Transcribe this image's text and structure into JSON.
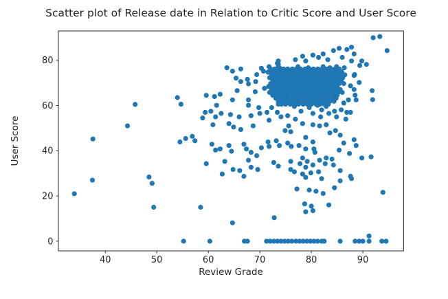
{
  "chart_data": {
    "type": "scatter",
    "title": "Scatter plot of Release date in Relation to Critic Score and User Score",
    "xlabel": "Review Grade",
    "ylabel": "User Score",
    "xlim": [
      30.9,
      97.9
    ],
    "ylim": [
      -4.3,
      93.0
    ],
    "xticks": [
      40,
      50,
      60,
      70,
      80,
      90
    ],
    "yticks": [
      0,
      20,
      40,
      60,
      80
    ],
    "grid": false,
    "legend": null,
    "marker_color": "#1f77b4",
    "axis_color": "#262626",
    "values_estimated": true,
    "points": [
      [
        34,
        21
      ],
      [
        37.5,
        27
      ],
      [
        37.6,
        45.2
      ],
      [
        44.3,
        51
      ],
      [
        45.8,
        60.5
      ],
      [
        48.5,
        28.4
      ],
      [
        49.1,
        25.6
      ],
      [
        49.4,
        15
      ],
      [
        58.5,
        15
      ],
      [
        64.7,
        8.1
      ],
      [
        72.8,
        10.4
      ],
      [
        55.2,
        0
      ],
      [
        60.3,
        0
      ],
      [
        67,
        0
      ],
      [
        67.6,
        0
      ],
      [
        71.3,
        0
      ],
      [
        72,
        0
      ],
      [
        72.7,
        0
      ],
      [
        73.4,
        0
      ],
      [
        74.1,
        0
      ],
      [
        74.8,
        0
      ],
      [
        75.5,
        0
      ],
      [
        76.2,
        0
      ],
      [
        77,
        0
      ],
      [
        77.7,
        0
      ],
      [
        78.4,
        0
      ],
      [
        79.1,
        0
      ],
      [
        79.8,
        0
      ],
      [
        80.5,
        0
      ],
      [
        81.2,
        0
      ],
      [
        82,
        0
      ],
      [
        82.5,
        0
      ],
      [
        85.6,
        0
      ],
      [
        88.5,
        0
      ],
      [
        89.3,
        0
      ],
      [
        90,
        0
      ],
      [
        91.2,
        0
      ],
      [
        91.2,
        2.3
      ],
      [
        93.7,
        0
      ],
      [
        94.5,
        0
      ],
      [
        77.2,
        23.1
      ],
      [
        79.6,
        22.6
      ],
      [
        80.9,
        22.1
      ],
      [
        82.3,
        21.1
      ],
      [
        84.5,
        23.6
      ],
      [
        93.9,
        21.6
      ],
      [
        78.7,
        16.5
      ],
      [
        80,
        15.5
      ],
      [
        83.4,
        16
      ],
      [
        78.9,
        13
      ],
      [
        80.3,
        13.5
      ],
      [
        78.9,
        28.2
      ],
      [
        82,
        27.7
      ],
      [
        85.6,
        26.7
      ],
      [
        87.8,
        27.7
      ],
      [
        54.7,
        60.6
      ],
      [
        59.4,
        57
      ],
      [
        60.5,
        57.5
      ],
      [
        58.9,
        54.5
      ],
      [
        61.6,
        60.1
      ],
      [
        61.4,
        55
      ],
      [
        60.9,
        51.5
      ],
      [
        62.5,
        56.5
      ],
      [
        64.3,
        56
      ],
      [
        64,
        52
      ],
      [
        64.9,
        50.5
      ],
      [
        66,
        55
      ],
      [
        66.3,
        49.4
      ],
      [
        67.8,
        60.1
      ],
      [
        68.3,
        55.5
      ],
      [
        68.7,
        51
      ],
      [
        69.8,
        59.1
      ],
      [
        70,
        56.5
      ],
      [
        71.4,
        57
      ],
      [
        71.8,
        53.5
      ],
      [
        72.3,
        59.1
      ],
      [
        73.6,
        60.6
      ],
      [
        73.4,
        57
      ],
      [
        74.1,
        55
      ],
      [
        75.4,
        55.5
      ],
      [
        75.6,
        51
      ],
      [
        74.9,
        48.9
      ],
      [
        76,
        48.4
      ],
      [
        54.5,
        43.9
      ],
      [
        55.6,
        45.4
      ],
      [
        56.9,
        46.4
      ],
      [
        57.4,
        44.4
      ],
      [
        60.7,
        42.9
      ],
      [
        61.4,
        40.3
      ],
      [
        62.3,
        40.8
      ],
      [
        64,
        42.3
      ],
      [
        64.5,
        39.8
      ],
      [
        66.9,
        42.9
      ],
      [
        67.4,
        40.8
      ],
      [
        68.3,
        39.3
      ],
      [
        69.4,
        37.8
      ],
      [
        70.3,
        41.3
      ],
      [
        71.6,
        43.9
      ],
      [
        71.8,
        41.9
      ],
      [
        73.2,
        44.4
      ],
      [
        73.8,
        42.3
      ],
      [
        75.4,
        43.4
      ],
      [
        76.1,
        41.9
      ],
      [
        59.6,
        34.3
      ],
      [
        63.2,
        35.3
      ],
      [
        64.8,
        31.7
      ],
      [
        66.1,
        31.2
      ],
      [
        67.8,
        35.8
      ],
      [
        68.3,
        32.7
      ],
      [
        69.6,
        31.7
      ],
      [
        62.7,
        29.7
      ],
      [
        66.9,
        28.7
      ],
      [
        72.7,
        34.8
      ],
      [
        73.6,
        33.2
      ],
      [
        76,
        35.3
      ],
      [
        76,
        31.7
      ],
      [
        54,
        63.5
      ],
      [
        59.6,
        64.5
      ],
      [
        61.2,
        64
      ],
      [
        62.3,
        65
      ],
      [
        64.7,
        62.5
      ],
      [
        65.6,
        66.6
      ],
      [
        67.8,
        62.5
      ],
      [
        69.1,
        66.1
      ],
      [
        70.9,
        67.6
      ],
      [
        64.7,
        75.2
      ],
      [
        65.4,
        72.1
      ],
      [
        66.3,
        70.6
      ],
      [
        67.6,
        71.6
      ],
      [
        67.8,
        69.6
      ],
      [
        69.2,
        70.6
      ],
      [
        69.4,
        73.7
      ],
      [
        70.7,
        75.2
      ],
      [
        71.6,
        74.7
      ],
      [
        73.4,
        78.7
      ],
      [
        73.6,
        77.2
      ],
      [
        74.5,
        75.2
      ],
      [
        75.8,
        75.2
      ],
      [
        76.7,
        59.6
      ],
      [
        78,
        57.5
      ],
      [
        76.9,
        54
      ],
      [
        78.3,
        52
      ],
      [
        79.6,
        59.1
      ],
      [
        80.3,
        56.5
      ],
      [
        81.2,
        60.1
      ],
      [
        82,
        58.1
      ],
      [
        81.8,
        55
      ],
      [
        82.9,
        59.6
      ],
      [
        83.4,
        56.5
      ],
      [
        84.5,
        57.5
      ],
      [
        84.9,
        55
      ],
      [
        85.8,
        58.1
      ],
      [
        86.9,
        57
      ],
      [
        87.6,
        57
      ],
      [
        86.7,
        54
      ],
      [
        80.3,
        51.5
      ],
      [
        81.6,
        51
      ],
      [
        82.9,
        51.5
      ],
      [
        84.7,
        48.9
      ],
      [
        85.6,
        46.9
      ],
      [
        83.6,
        47.9
      ],
      [
        78.9,
        45.9
      ],
      [
        80.3,
        43.9
      ],
      [
        77.6,
        42.3
      ],
      [
        78.9,
        40.8
      ],
      [
        80.5,
        40.8
      ],
      [
        80.7,
        39.3
      ],
      [
        88.3,
        44.9
      ],
      [
        88.7,
        42.3
      ],
      [
        86.3,
        43.4
      ],
      [
        85.4,
        40.3
      ],
      [
        87.4,
        38.8
      ],
      [
        89.8,
        36.8
      ],
      [
        91.6,
        37.3
      ],
      [
        78.3,
        36.8
      ],
      [
        79.2,
        35.3
      ],
      [
        77.8,
        34.3
      ],
      [
        78.9,
        32.7
      ],
      [
        80.3,
        33.7
      ],
      [
        81.6,
        35.8
      ],
      [
        82.9,
        36.8
      ],
      [
        82.7,
        34.3
      ],
      [
        84,
        36.3
      ],
      [
        84.3,
        33.7
      ],
      [
        76.7,
        30.7
      ],
      [
        78.3,
        29.7
      ],
      [
        79.9,
        30.2
      ],
      [
        81.4,
        30.7
      ],
      [
        85.6,
        31.2
      ],
      [
        87.6,
        28.7
      ],
      [
        92,
        90
      ],
      [
        93.3,
        90.5
      ],
      [
        94.7,
        84.3
      ],
      [
        73.6,
        79.7
      ],
      [
        73.6,
        78.2
      ],
      [
        76.9,
        80.3
      ],
      [
        78.3,
        81.8
      ],
      [
        78.9,
        79.7
      ],
      [
        80.3,
        82.3
      ],
      [
        81.4,
        81.3
      ],
      [
        82.3,
        82.8
      ],
      [
        83.2,
        80.3
      ],
      [
        84.3,
        84.3
      ],
      [
        85.4,
        85.3
      ],
      [
        86,
        81.3
      ],
      [
        86.9,
        84.8
      ],
      [
        87.8,
        85.8
      ],
      [
        88.3,
        82.8
      ],
      [
        87.8,
        79.7
      ],
      [
        89.8,
        79.7
      ],
      [
        90.7,
        78.2
      ],
      [
        89.4,
        77.7
      ],
      [
        63.6,
        76.7
      ],
      [
        66.3,
        76.2
      ],
      [
        70.3,
        76.5
      ],
      [
        71.8,
        77.2
      ],
      [
        73.8,
        76.7
      ],
      [
        77.4,
        77.2
      ],
      [
        79.4,
        76.7
      ],
      [
        82.3,
        77.2
      ],
      [
        83.6,
        76.7
      ],
      [
        84.9,
        77.2
      ],
      [
        86.4,
        76.7
      ],
      [
        88.4,
        73.7
      ],
      [
        88.3,
        67.1
      ],
      [
        91.8,
        66.6
      ],
      [
        91.9,
        62.6
      ],
      [
        87.2,
        62.5
      ],
      [
        88.7,
        62.5
      ],
      [
        88.3,
        73.3
      ],
      [
        89.3,
        70.2
      ],
      [
        87.6,
        68.7
      ],
      [
        88.5,
        64.6
      ],
      [
        86.3,
        61.1
      ]
    ],
    "dense_cluster_rows": [
      {
        "y": 76.2,
        "x": [
          72.1,
          72.9,
          73.8,
          74.6,
          75.4,
          76.3,
          77.1,
          77.9,
          78.8,
          79.6,
          80.4,
          81.3,
          82.1,
          82.9,
          83.8,
          84.6,
          85.4
        ]
      },
      {
        "y": 74.9,
        "x": [
          71.7,
          72.5,
          73.4,
          74.2,
          75,
          75.9,
          76.7,
          77.5,
          78.4,
          79.2,
          80,
          80.9,
          81.7,
          82.5,
          83.4,
          84.2,
          85,
          85.9
        ]
      },
      {
        "y": 73.6,
        "x": [
          72.3,
          73.1,
          74,
          74.8,
          75.6,
          76.5,
          77.3,
          78.1,
          79,
          79.8,
          80.6,
          81.5,
          82.3,
          83.1,
          84,
          84.8,
          85.6,
          86.5
        ]
      },
      {
        "y": 72.3,
        "x": [
          71.9,
          72.7,
          73.6,
          74.4,
          75.2,
          76.1,
          76.9,
          77.7,
          78.6,
          79.4,
          80.2,
          81.1,
          81.9,
          82.7,
          83.6,
          84.4,
          85.2,
          86.1
        ]
      },
      {
        "y": 71.0,
        "x": [
          72.5,
          73.3,
          74.2,
          75,
          75.8,
          76.7,
          77.5,
          78.3,
          79.2,
          80,
          80.8,
          81.7,
          82.5,
          83.3,
          84.2,
          85,
          85.8
        ]
      },
      {
        "y": 69.7,
        "x": [
          72.1,
          72.9,
          73.8,
          74.6,
          75.4,
          76.3,
          77.1,
          77.9,
          78.8,
          79.6,
          80.4,
          81.3,
          82.1,
          82.9,
          83.8,
          84.6,
          85.4,
          86.3
        ]
      },
      {
        "y": 68.4,
        "x": [
          71.7,
          72.5,
          73.4,
          74.2,
          75,
          75.9,
          76.7,
          77.5,
          78.4,
          79.2,
          80,
          80.9,
          81.7,
          82.5,
          83.4,
          84.2,
          85
        ]
      },
      {
        "y": 67.1,
        "x": [
          72.3,
          73.1,
          74,
          74.8,
          75.6,
          76.5,
          77.3,
          78.1,
          79,
          79.8,
          80.6,
          81.5,
          82.3,
          83.1,
          84,
          84.8,
          85.6
        ]
      },
      {
        "y": 65.8,
        "x": [
          71.9,
          72.7,
          73.6,
          74.4,
          75.2,
          76.1,
          76.9,
          77.7,
          78.6,
          79.4,
          80.2,
          81.1,
          81.9,
          82.7,
          83.6,
          84.4,
          85.2,
          86
        ]
      },
      {
        "y": 64.5,
        "x": [
          72.5,
          73.3,
          74.2,
          75,
          75.8,
          76.7,
          77.5,
          78.3,
          79.2,
          80,
          80.8,
          81.7,
          82.5,
          83.3,
          84.2,
          85
        ]
      },
      {
        "y": 63.2,
        "x": [
          73.1,
          74,
          74.8,
          75.6,
          76.5,
          77.3,
          78.1,
          79,
          79.8,
          80.6,
          81.5,
          82.3,
          83.1,
          84,
          84.8
        ]
      },
      {
        "y": 61.9,
        "x": [
          73.6,
          74.4,
          75.2,
          76.1,
          76.9,
          77.7,
          78.6,
          79.4,
          80.2,
          81.1,
          81.9,
          82.7,
          83.6,
          84.4
        ]
      },
      {
        "y": 60.6,
        "x": [
          74.2,
          75,
          75.9,
          76.7,
          77.5,
          78.4,
          79.2,
          80,
          80.9,
          81.7,
          82.5,
          83.3
        ]
      }
    ]
  }
}
